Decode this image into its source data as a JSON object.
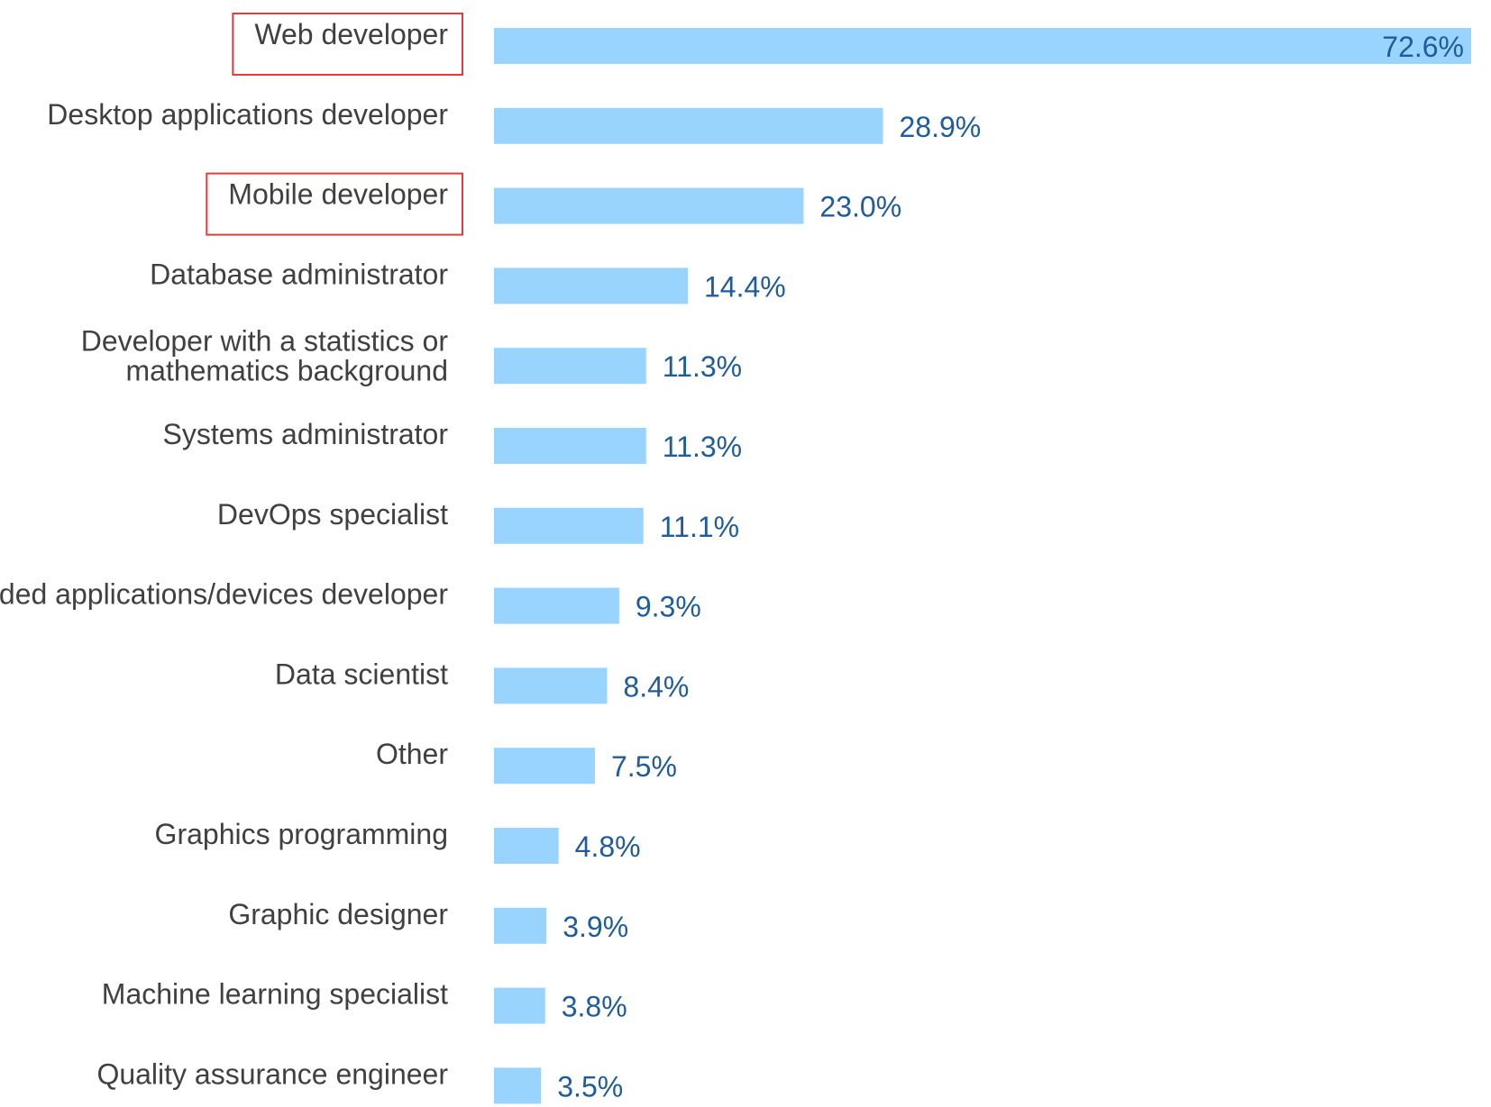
{
  "chart_data": {
    "type": "bar",
    "orientation": "horizontal",
    "categories": [
      "Web developer",
      "Desktop applications developer",
      "Mobile developer",
      "Database administrator",
      "Developer with a statistics or mathematics background",
      "Systems administrator",
      "DevOps specialist",
      "Embedded applications/devices developer",
      "Data scientist",
      "Other",
      "Graphics programming",
      "Graphic designer",
      "Machine learning specialist",
      "Quality assurance engineer"
    ],
    "values": [
      72.6,
      28.9,
      23.0,
      14.4,
      11.3,
      11.3,
      11.1,
      9.3,
      8.4,
      7.5,
      4.8,
      3.9,
      3.8,
      3.5
    ],
    "value_labels": [
      "72.6%",
      "28.9%",
      "23.0%",
      "14.4%",
      "11.3%",
      "11.3%",
      "11.1%",
      "9.3%",
      "8.4%",
      "7.5%",
      "4.8%",
      "3.9%",
      "3.8%",
      "3.5%"
    ],
    "highlighted": [
      "Web developer",
      "Mobile developer"
    ],
    "xlim": [
      0,
      72.6
    ],
    "grid": false,
    "legend": "none",
    "colors": {
      "bar": "#99d3ff",
      "value_label": "#1f5c99",
      "category_label": "#404040",
      "highlight": "#e03c3c"
    }
  }
}
